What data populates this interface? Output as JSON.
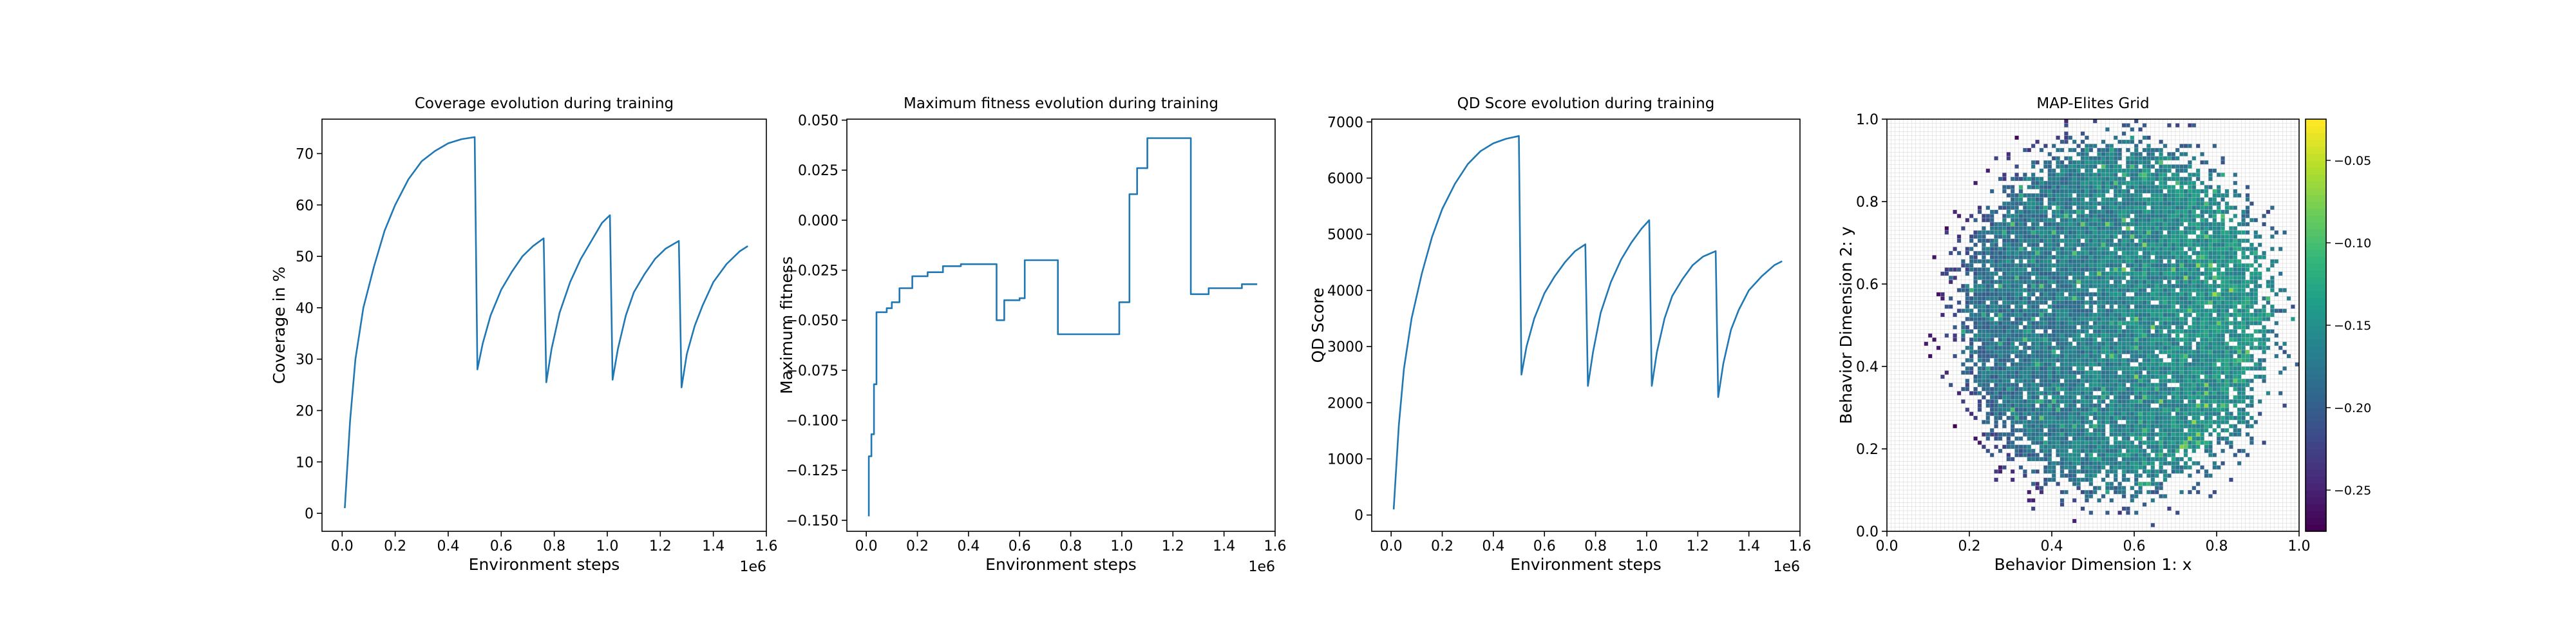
{
  "chart_data": [
    {
      "type": "line",
      "title": "Coverage evolution during training",
      "xlabel": "Environment steps",
      "ylabel": "Coverage in %",
      "x_offset_text": "1e6",
      "xlim": [
        -0.076,
        1.6
      ],
      "ylim": [
        -3.5,
        76.7
      ],
      "xticks": [
        0.0,
        0.2,
        0.4,
        0.6,
        0.8,
        1.0,
        1.2,
        1.4,
        1.6
      ],
      "xtick_labels": [
        "0.0",
        "0.2",
        "0.4",
        "0.6",
        "0.8",
        "1.0",
        "1.2",
        "1.4",
        "1.6"
      ],
      "yticks": [
        0,
        10,
        20,
        30,
        40,
        50,
        60,
        70
      ],
      "ytick_labels": [
        "0",
        "10",
        "20",
        "30",
        "40",
        "50",
        "60",
        "70"
      ],
      "series": [
        {
          "color": "#1f77b4",
          "x": [
            0.01,
            0.03,
            0.05,
            0.08,
            0.12,
            0.16,
            0.2,
            0.25,
            0.3,
            0.35,
            0.4,
            0.45,
            0.5,
            0.51,
            0.53,
            0.56,
            0.6,
            0.64,
            0.68,
            0.72,
            0.76,
            0.77,
            0.79,
            0.82,
            0.86,
            0.9,
            0.94,
            0.98,
            1.01,
            1.02,
            1.04,
            1.07,
            1.1,
            1.14,
            1.18,
            1.22,
            1.27,
            1.28,
            1.3,
            1.33,
            1.36,
            1.4,
            1.45,
            1.5,
            1.53
          ],
          "y": [
            1,
            18,
            30,
            40,
            48,
            55,
            60,
            65,
            68.5,
            70.5,
            72,
            72.8,
            73.2,
            28,
            33,
            38.5,
            43.5,
            47,
            50,
            52,
            53.5,
            25.5,
            32,
            39,
            45,
            49.5,
            53,
            56.5,
            58,
            26,
            32,
            38.5,
            43,
            46.5,
            49.5,
            51.5,
            53,
            24.5,
            31,
            36.5,
            40.5,
            45,
            48.5,
            51,
            52
          ]
        }
      ]
    },
    {
      "type": "line",
      "title": "Maximum fitness evolution during training",
      "xlabel": "Environment steps",
      "ylabel": "Maximum fitness",
      "x_offset_text": "1e6",
      "xlim": [
        -0.076,
        1.6
      ],
      "ylim": [
        -0.1555,
        0.0505
      ],
      "xticks": [
        0.0,
        0.2,
        0.4,
        0.6,
        0.8,
        1.0,
        1.2,
        1.4,
        1.6
      ],
      "xtick_labels": [
        "0.0",
        "0.2",
        "0.4",
        "0.6",
        "0.8",
        "1.0",
        "1.2",
        "1.4",
        "1.6"
      ],
      "yticks": [
        -0.15,
        -0.125,
        -0.1,
        -0.075,
        -0.05,
        -0.025,
        0.0,
        0.025,
        0.05
      ],
      "ytick_labels": [
        "−0.150",
        "−0.125",
        "−0.100",
        "−0.075",
        "−0.050",
        "−0.025",
        "0.000",
        "0.025",
        "0.050"
      ],
      "series": [
        {
          "color": "#1f77b4",
          "x": [
            0.01,
            0.01,
            0.02,
            0.02,
            0.03,
            0.03,
            0.04,
            0.04,
            0.08,
            0.08,
            0.1,
            0.1,
            0.13,
            0.13,
            0.18,
            0.18,
            0.24,
            0.24,
            0.3,
            0.3,
            0.37,
            0.37,
            0.51,
            0.51,
            0.54,
            0.54,
            0.6,
            0.6,
            0.62,
            0.62,
            0.75,
            0.75,
            0.99,
            0.99,
            1.03,
            1.03,
            1.06,
            1.06,
            1.1,
            1.1,
            1.27,
            1.27,
            1.34,
            1.34,
            1.47,
            1.47,
            1.53
          ],
          "y": [
            -0.148,
            -0.118,
            -0.118,
            -0.107,
            -0.107,
            -0.082,
            -0.082,
            -0.046,
            -0.046,
            -0.044,
            -0.044,
            -0.041,
            -0.041,
            -0.034,
            -0.034,
            -0.028,
            -0.028,
            -0.026,
            -0.026,
            -0.023,
            -0.023,
            -0.022,
            -0.022,
            -0.05,
            -0.05,
            -0.04,
            -0.04,
            -0.039,
            -0.039,
            -0.02,
            -0.02,
            -0.057,
            -0.057,
            -0.041,
            -0.041,
            0.013,
            0.013,
            0.026,
            0.026,
            0.041,
            0.041,
            -0.037,
            -0.037,
            -0.034,
            -0.034,
            -0.032,
            -0.032
          ]
        }
      ]
    },
    {
      "type": "line",
      "title": "QD Score evolution during training",
      "xlabel": "Environment steps",
      "ylabel": "QD Score",
      "x_offset_text": "1e6",
      "xlim": [
        -0.076,
        1.6
      ],
      "ylim": [
        -290,
        7050
      ],
      "xticks": [
        0.0,
        0.2,
        0.4,
        0.6,
        0.8,
        1.0,
        1.2,
        1.4,
        1.6
      ],
      "xtick_labels": [
        "0.0",
        "0.2",
        "0.4",
        "0.6",
        "0.8",
        "1.0",
        "1.2",
        "1.4",
        "1.6"
      ],
      "yticks": [
        0,
        1000,
        2000,
        3000,
        4000,
        5000,
        6000,
        7000
      ],
      "ytick_labels": [
        "0",
        "1000",
        "2000",
        "3000",
        "4000",
        "5000",
        "6000",
        "7000"
      ],
      "series": [
        {
          "color": "#1f77b4",
          "x": [
            0.01,
            0.03,
            0.05,
            0.08,
            0.12,
            0.16,
            0.2,
            0.25,
            0.3,
            0.35,
            0.4,
            0.45,
            0.5,
            0.51,
            0.53,
            0.56,
            0.6,
            0.64,
            0.68,
            0.72,
            0.76,
            0.77,
            0.79,
            0.82,
            0.86,
            0.9,
            0.94,
            0.98,
            1.01,
            1.02,
            1.04,
            1.07,
            1.1,
            1.14,
            1.18,
            1.22,
            1.27,
            1.28,
            1.3,
            1.33,
            1.36,
            1.4,
            1.45,
            1.5,
            1.53
          ],
          "y": [
            100,
            1600,
            2600,
            3500,
            4300,
            4950,
            5450,
            5900,
            6250,
            6480,
            6620,
            6700,
            6750,
            2500,
            3000,
            3500,
            3950,
            4250,
            4500,
            4700,
            4820,
            2300,
            2900,
            3600,
            4150,
            4550,
            4850,
            5100,
            5250,
            2300,
            2900,
            3500,
            3900,
            4200,
            4450,
            4600,
            4700,
            2100,
            2700,
            3300,
            3650,
            4000,
            4250,
            4450,
            4520
          ]
        }
      ]
    },
    {
      "type": "heatmap",
      "title": "MAP-Elites Grid",
      "xlabel": "Behavior Dimension 1: x",
      "ylabel": "Behavior Dimension 2: y",
      "xlim": [
        0,
        1
      ],
      "ylim": [
        0,
        1
      ],
      "xticks": [
        0.0,
        0.2,
        0.4,
        0.6,
        0.8,
        1.0
      ],
      "xtick_labels": [
        "0.0",
        "0.2",
        "0.4",
        "0.6",
        "0.8",
        "1.0"
      ],
      "yticks": [
        0.0,
        0.2,
        0.4,
        0.6,
        0.8,
        1.0
      ],
      "ytick_labels": [
        "0.0",
        "0.2",
        "0.4",
        "0.6",
        "0.8",
        "1.0"
      ],
      "grid": "on",
      "grid_cells": 100,
      "colormap": "viridis",
      "color_range": [
        -0.275,
        -0.025
      ],
      "colorbar": {
        "ticks": [
          -0.25,
          -0.2,
          -0.15,
          -0.1,
          -0.05
        ],
        "tick_labels": [
          "−0.25",
          "−0.20",
          "−0.15",
          "−0.10",
          "−0.05"
        ]
      },
      "occupied_region": {
        "center": [
          0.55,
          0.52
        ],
        "radius": [
          0.4,
          0.45
        ]
      },
      "seed": 7
    }
  ]
}
